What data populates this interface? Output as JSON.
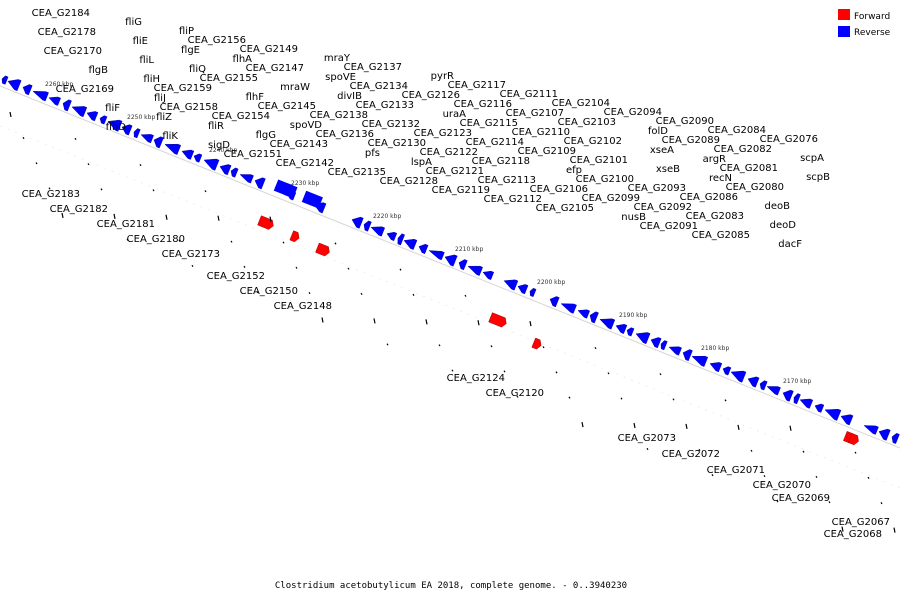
{
  "colors": {
    "forward": "#ff0000",
    "reverse": "#0000ff",
    "lead": "#cc0000",
    "leadRev": "#0000cc"
  },
  "legend": [
    {
      "label": "Forward",
      "strand": "forward"
    },
    {
      "label": "Reverse",
      "strand": "reverse"
    }
  ],
  "caption": "Clostridium acetobutylicum EA 2018, complete genome. - 0..3940230",
  "ticks": [
    "2260 kbp",
    "2250 kbp",
    "2240 kbp",
    "2230 kbp",
    "2220 kbp",
    "2210 kbp",
    "2200 kbp",
    "2190 kbp",
    "2180 kbp",
    "2170 kbp"
  ],
  "labels_top": [
    "CEA_G2184",
    "CEA_G2178",
    "CEA_G2170",
    "flgB",
    "CEA_G2169",
    "fliF",
    "flbD",
    "fliG",
    "fliE",
    "fliL",
    "fliH",
    "fliJ",
    "fliZ",
    "fliK",
    "fliP",
    "flgE",
    "fliQ",
    "CEA_G2159",
    "CEA_G2158",
    "fliR",
    "sigD",
    "CEA_G2156",
    "flhA",
    "CEA_G2155",
    "flhF",
    "CEA_G2154",
    "flgG",
    "CEA_G2151",
    "CEA_G2149",
    "CEA_G2147",
    "mraW",
    "CEA_G2145",
    "spoVD",
    "CEA_G2143",
    "CEA_G2142",
    "mraY",
    "spoVE",
    "divIB",
    "CEA_G2138",
    "CEA_G2136",
    "pfs",
    "CEA_G2135",
    "CEA_G2137",
    "CEA_G2134",
    "CEA_G2133",
    "CEA_G2132",
    "CEA_G2130",
    "lspA",
    "CEA_G2128",
    "pyrR",
    "CEA_G2126",
    "uraA",
    "CEA_G2123",
    "CEA_G2122",
    "CEA_G2121",
    "CEA_G2119",
    "CEA_G2117",
    "CEA_G2116",
    "CEA_G2115",
    "CEA_G2114",
    "CEA_G2118",
    "CEA_G2113",
    "CEA_G2112",
    "CEA_G2111",
    "CEA_G2107",
    "CEA_G2110",
    "CEA_G2109",
    "efp",
    "CEA_G2106",
    "CEA_G2105",
    "CEA_G2104",
    "CEA_G2103",
    "CEA_G2102",
    "CEA_G2101",
    "CEA_G2100",
    "CEA_G2099",
    "nusB",
    "CEA_G2094",
    "folD",
    "xseA",
    "xseB",
    "CEA_G2093",
    "CEA_G2092",
    "CEA_G2091",
    "CEA_G2090",
    "CEA_G2089",
    "argR",
    "recN",
    "CEA_G2086",
    "CEA_G2083",
    "CEA_G2085",
    "CEA_G2084",
    "CEA_G2082",
    "CEA_G2081",
    "CEA_G2080",
    "deoB",
    "deoD",
    "dacF",
    "CEA_G2076",
    "scpA",
    "scpB"
  ],
  "labels_bottom_rev": [
    "CEA_G2183",
    "CEA_G2182",
    "CEA_G2181",
    "CEA_G2180",
    "CEA_G2173",
    "CEA_G2071",
    "CEA_G2070",
    "CEA_G2067",
    "CEA_G2068"
  ],
  "labels_bottom_fwd": [
    "CEA_G2152",
    "CEA_G2150",
    "CEA_G2148",
    "CEA_G2124",
    "CEA_G2120",
    "CEA_G2073",
    "CEA_G2072",
    "CEA_G2069"
  ]
}
